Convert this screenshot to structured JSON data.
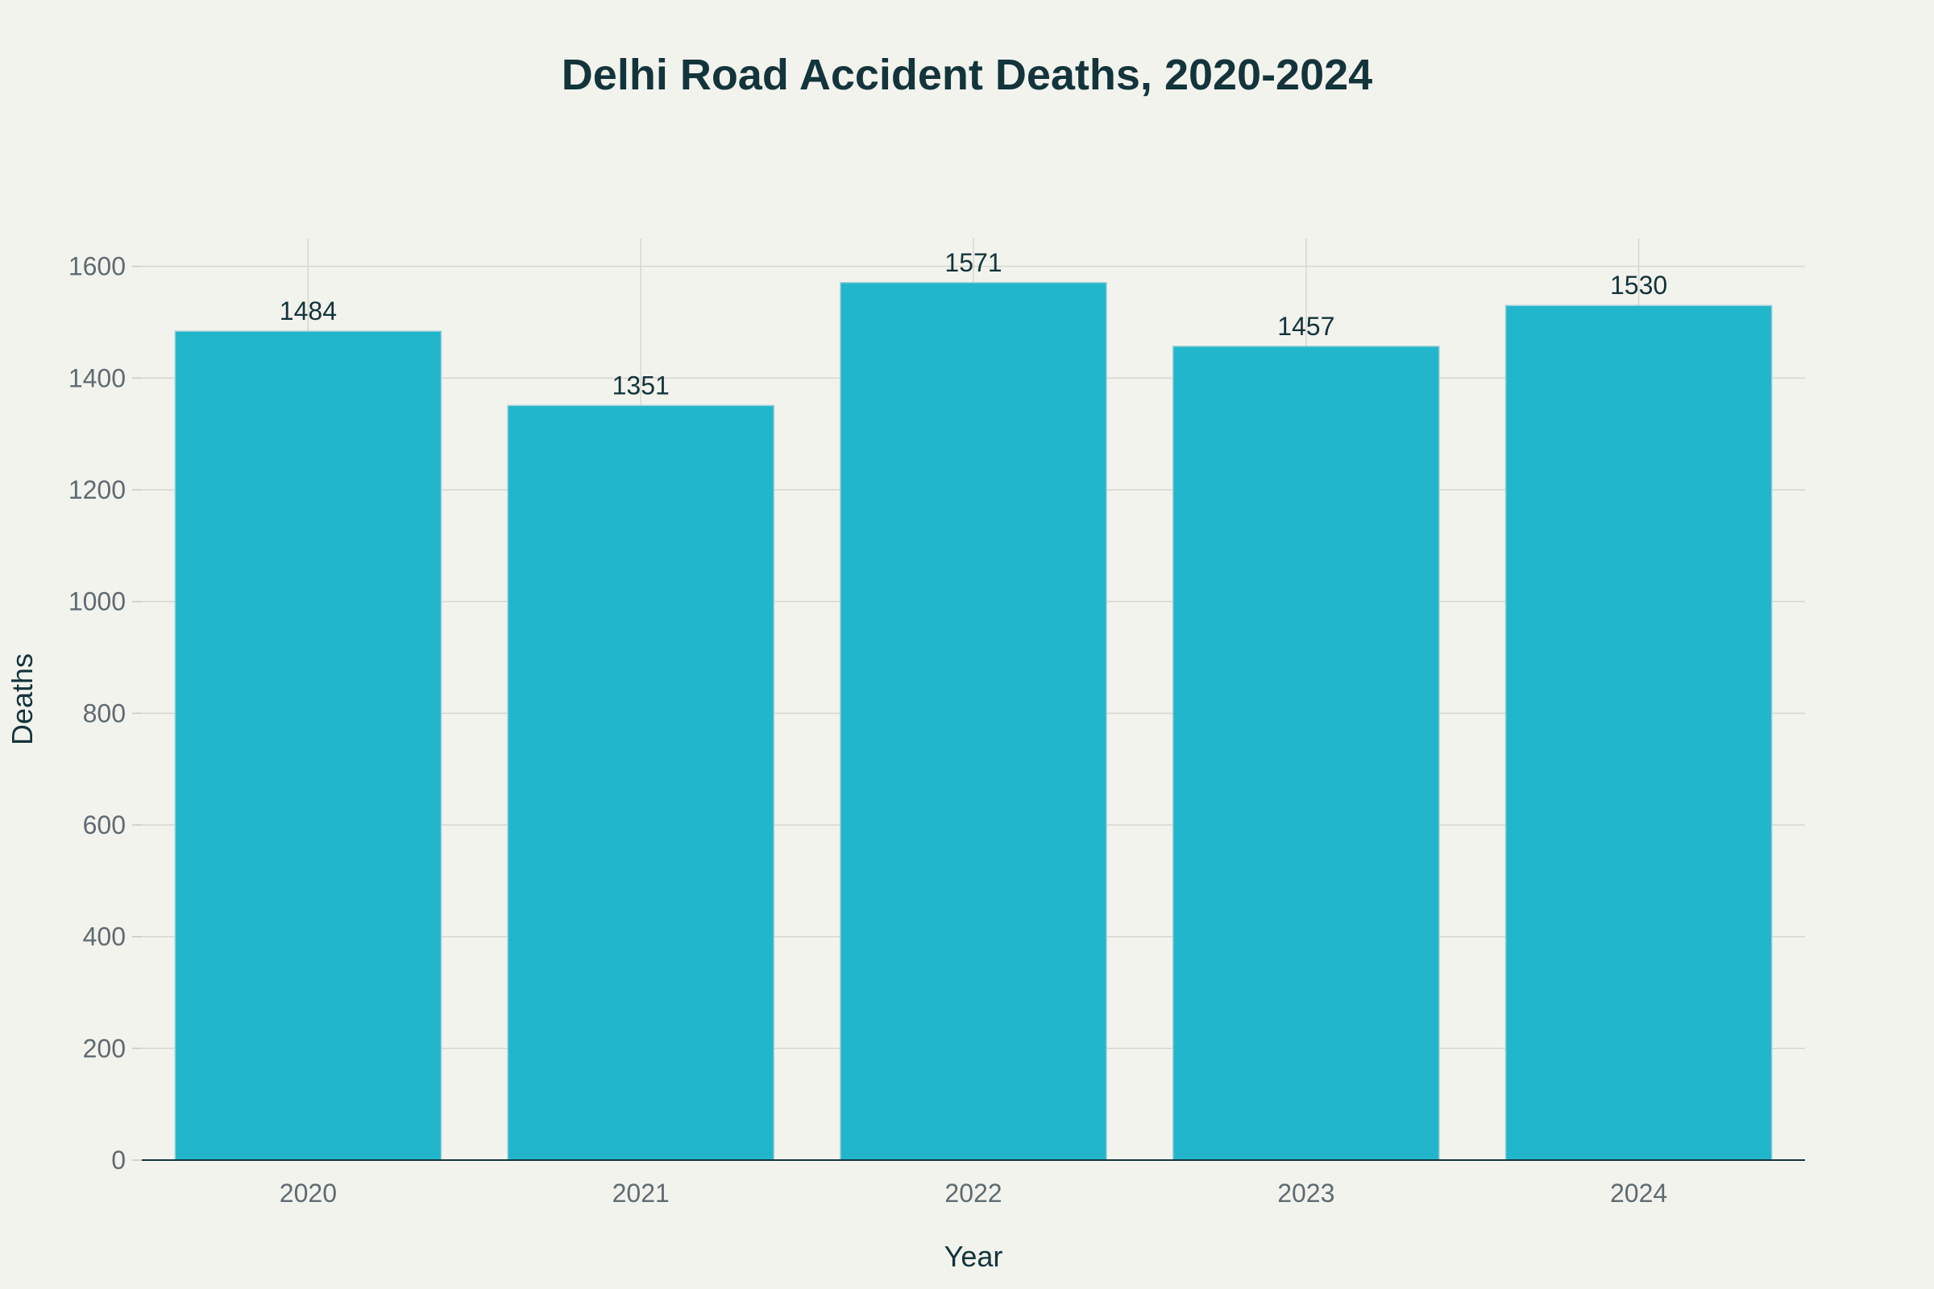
{
  "chart_data": {
    "type": "bar",
    "title": "Delhi Road Accident Deaths, 2020-2024",
    "xlabel": "Year",
    "ylabel": "Deaths",
    "categories": [
      "2020",
      "2021",
      "2022",
      "2023",
      "2024"
    ],
    "values": [
      1484,
      1351,
      1571,
      1457,
      1530
    ],
    "data_labels": [
      "1484",
      "1351",
      "1571",
      "1457",
      "1530"
    ],
    "ylim": [
      0,
      1650
    ],
    "yticks": [
      0,
      200,
      400,
      600,
      800,
      1000,
      1200,
      1400,
      1600
    ],
    "grid": true,
    "legend": "none",
    "colors": {
      "bar": "#21b6cc",
      "bar_outline": "#9fcfd6",
      "background": "#f3f3ee",
      "title": "#13343b",
      "grid": "#d6d6d2"
    }
  }
}
